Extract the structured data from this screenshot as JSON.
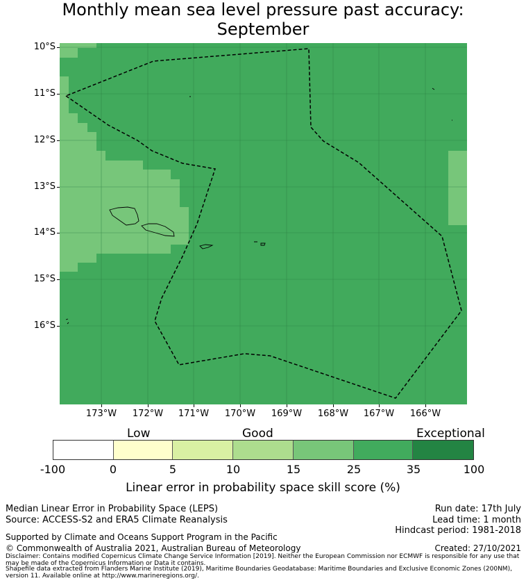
{
  "title": {
    "line1": "Monthly mean sea level pressure past accuracy:",
    "line2": "September"
  },
  "map": {
    "lat_labels": [
      "10°S",
      "11°S",
      "12°S",
      "13°S",
      "14°S",
      "15°S",
      "16°S"
    ],
    "lon_labels": [
      "173°W",
      "172°W",
      "171°W",
      "170°W",
      "169°W",
      "168°W",
      "167°W",
      "166°W"
    ],
    "skill_category_colors": {
      "good_15_25": "#77c67a",
      "very_good_25_35": "#41aa5c"
    },
    "eez_boundary": "dashed"
  },
  "legend": {
    "categories": [
      "Low",
      "Good",
      "Exceptional"
    ],
    "ticks": [
      "-100",
      "0",
      "5",
      "10",
      "15",
      "25",
      "35",
      "100"
    ],
    "colors": [
      "#ffffff",
      "#ffffcc",
      "#d9f0a3",
      "#addd8e",
      "#78c679",
      "#41ab5d",
      "#238443"
    ],
    "label": "Linear error in probability space skill score (%)"
  },
  "footer": {
    "left1": "Median Linear Error in Probability Space (LEPS)",
    "left2": "Source: ACCESS-S2 and ERA5 Climate Reanalysis",
    "support": "Supported by Climate and Oceans Support Program in the Pacific",
    "copyright": "© Commonwealth of Australia 2021, Australian Bureau of Meteorology",
    "run_date": "Run date: 17th July",
    "lead_time": "Lead time: 1 month",
    "hindcast": "Hindcast period: 1981-2018",
    "created": "Created: 27/10/2021",
    "disclaimer": "Disclaimer: Contains modified Copernicus Climate Change Service Information [2019]. Neither the European Commission nor ECMWF is responsible for any use that may be made of the Copernicus Information or Data it contains.",
    "shapefile": "Shapefile data extracted from Flanders Marine Institute (2019), Maritime Boundaries Geodatabase: Maritime Boundaries and Exclusive Economic Zones (200NM), version 11. Available online at http://www.marineregions.org/."
  }
}
